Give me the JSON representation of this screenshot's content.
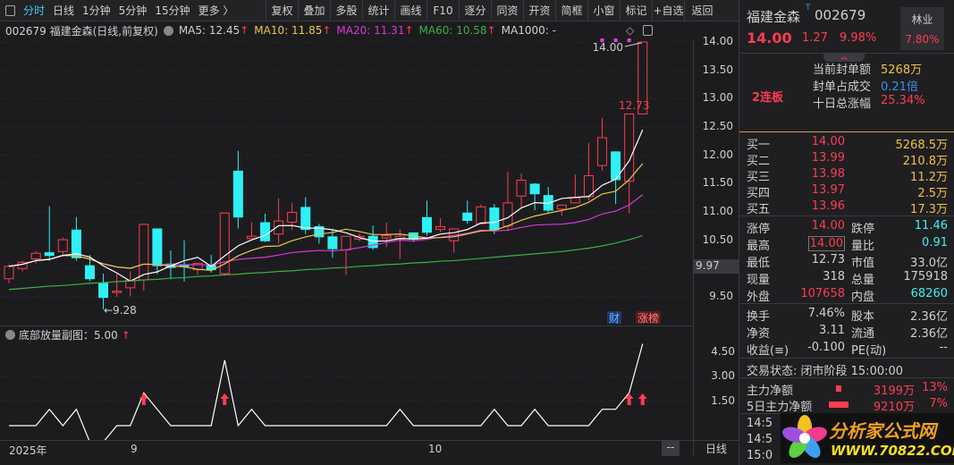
{
  "toolbar": {
    "period_tabs": [
      "分时",
      "日线",
      "1分钟",
      "5分钟",
      "15分钟",
      "更多 〉"
    ],
    "active_tab": "分时",
    "buttons": [
      "复权",
      "叠加",
      "多股",
      "统计",
      "画线",
      "F10",
      "逐分",
      "同资",
      "开资",
      "简框",
      "小窗",
      "标记",
      "+自选",
      "返回"
    ]
  },
  "info": {
    "title": "002679 福建金森(日线,前复权)",
    "ma5": "MA5: 12.45",
    "ma10": "MA10: 11.85",
    "ma20": "MA20: 11.31",
    "ma60": "MA60: 10.58",
    "ma1000": "MA1000: -",
    "arrow": "↑"
  },
  "colors": {
    "up": "#ff3c50",
    "down": "#2ef0f5",
    "ma5": "#ffffff",
    "ma10": "#e8c84a",
    "ma20": "#d838d8",
    "ma60": "#3cb043",
    "bg": "#1c1c1f"
  },
  "chart_data": {
    "type": "candlestick",
    "price_ticks": [
      "14.00",
      "13.50",
      "13.00",
      "12.50",
      "12.00",
      "11.50",
      "11.00",
      "10.50",
      "9.50"
    ],
    "prev_close_label": "9.97",
    "candles": [
      [
        9.82,
        10.04,
        10.07,
        9.74
      ],
      [
        10.0,
        10.11,
        10.14,
        9.95
      ],
      [
        10.17,
        10.27,
        10.31,
        10.09
      ],
      [
        10.28,
        10.23,
        11.1,
        10.14
      ],
      [
        10.3,
        10.51,
        10.55,
        10.21
      ],
      [
        10.68,
        10.19,
        10.91,
        10.14
      ],
      [
        10.05,
        9.82,
        10.24,
        9.78
      ],
      [
        9.74,
        9.49,
        9.91,
        9.28
      ],
      [
        9.58,
        9.6,
        9.9,
        9.5
      ],
      [
        9.66,
        9.79,
        9.95,
        9.51
      ],
      [
        9.8,
        10.78,
        10.78,
        9.61
      ],
      [
        10.7,
        10.05,
        10.7,
        9.9
      ],
      [
        10.08,
        10.02,
        10.32,
        9.81
      ],
      [
        10.06,
        10.05,
        10.5,
        9.77
      ],
      [
        9.98,
        10.09,
        10.1,
        9.89
      ],
      [
        10.06,
        9.98,
        10.24,
        9.93
      ],
      [
        9.91,
        10.98,
        10.98,
        9.87
      ],
      [
        11.72,
        10.91,
        12.08,
        10.71
      ],
      [
        10.53,
        10.57,
        10.82,
        10.53
      ],
      [
        10.81,
        10.49,
        10.97,
        10.47
      ],
      [
        10.61,
        10.84,
        11.24,
        10.44
      ],
      [
        10.82,
        10.99,
        11.16,
        10.68
      ],
      [
        11.08,
        10.69,
        11.26,
        10.61
      ],
      [
        10.74,
        10.56,
        10.79,
        10.44
      ],
      [
        10.56,
        10.35,
        10.69,
        10.19
      ],
      [
        10.33,
        10.57,
        10.57,
        9.89
      ],
      [
        10.52,
        10.57,
        10.62,
        10.48
      ],
      [
        10.57,
        10.37,
        10.76,
        10.33
      ],
      [
        10.54,
        10.58,
        10.81,
        10.38
      ],
      [
        10.52,
        10.57,
        10.69,
        10.17
      ],
      [
        10.63,
        10.52,
        10.63,
        10.47
      ],
      [
        10.9,
        10.64,
        11.2,
        10.58
      ],
      [
        10.69,
        10.74,
        10.89,
        10.64
      ],
      [
        10.49,
        10.7,
        10.7,
        10.28
      ],
      [
        10.98,
        10.85,
        11.2,
        10.79
      ],
      [
        10.79,
        11.09,
        11.13,
        10.79
      ],
      [
        11.07,
        10.69,
        11.14,
        10.61
      ],
      [
        10.75,
        11.16,
        11.71,
        10.66
      ],
      [
        11.28,
        11.56,
        11.68,
        11.06
      ],
      [
        11.49,
        11.32,
        11.51,
        11.03
      ],
      [
        11.29,
        11.03,
        11.44,
        10.98
      ],
      [
        11.05,
        11.12,
        11.12,
        10.93
      ],
      [
        11.16,
        11.25,
        11.66,
        11.16
      ],
      [
        11.27,
        11.64,
        12.22,
        11.2
      ],
      [
        11.82,
        12.31,
        12.66,
        11.73
      ],
      [
        12.06,
        11.57,
        12.07,
        11.14
      ],
      [
        11.54,
        12.73,
        12.73,
        10.98
      ],
      [
        12.73,
        14.0,
        14.0,
        12.73
      ]
    ],
    "ma60": [
      9.63,
      9.65,
      9.67,
      9.69,
      9.7,
      9.72,
      9.74,
      9.75,
      9.77,
      9.78,
      9.8,
      9.81,
      9.83,
      9.84,
      9.86,
      9.87,
      9.89,
      9.9,
      9.92,
      9.93,
      9.95,
      9.96,
      9.98,
      9.99,
      10.01,
      10.02,
      10.04,
      10.05,
      10.07,
      10.08,
      10.1,
      10.11,
      10.13,
      10.14,
      10.16,
      10.18,
      10.2,
      10.22,
      10.24,
      10.26,
      10.28,
      10.3,
      10.33,
      10.36,
      10.4,
      10.45,
      10.51,
      10.58
    ],
    "annotations": {
      "high": "14.00",
      "low": "←9.28",
      "last_low": "12.73"
    },
    "badges": {
      "cai": "财",
      "zhangbang": "涨榜"
    },
    "signal_dots_at": [
      44,
      45,
      46
    ],
    "sub": {
      "title": "底部放量副图：5.00",
      "arrow": "↑",
      "ticks": [
        "4.50",
        "3.00",
        "1.50"
      ],
      "values": [
        0,
        0,
        0,
        1,
        0,
        1,
        -1,
        -1,
        0,
        0,
        2,
        1,
        0,
        0,
        0,
        0,
        4,
        0,
        1,
        0,
        0,
        0,
        0,
        0,
        0,
        0,
        0,
        0,
        0,
        1,
        0,
        0,
        0,
        0,
        0,
        0,
        1,
        0,
        0,
        1,
        0,
        0,
        0,
        0,
        1,
        1,
        2,
        5
      ],
      "arrows_at": [
        10,
        16,
        46,
        47
      ]
    },
    "x_labels": {
      "year": "2025年",
      "sep": "9",
      "oct": "10"
    },
    "bottom": {
      "dash": "--",
      "period": "日线"
    }
  },
  "quote": {
    "name": "福建金森",
    "t": "T",
    "code": "002679",
    "price": "14.00",
    "change": "1.27",
    "pct": "9.98%",
    "sector": "林业",
    "sector_pct": "7.80%",
    "streak": "2连板",
    "seal": [
      [
        "当前封单额",
        "5268万"
      ],
      [
        "封单占成交",
        "0.21倍"
      ],
      [
        "十日总涨幅",
        "25.34%"
      ]
    ],
    "book": [
      [
        "买一",
        "14.00",
        "5268.5万"
      ],
      [
        "买二",
        "13.99",
        "210.8万"
      ],
      [
        "买三",
        "13.98",
        "11.2万"
      ],
      [
        "买四",
        "13.97",
        "2.5万"
      ],
      [
        "买五",
        "13.96",
        "17.3万"
      ]
    ],
    "stats": [
      [
        "涨停",
        "14.00",
        "跌停",
        "11.46"
      ],
      [
        "最高",
        "14.00",
        "量比",
        "0.91"
      ],
      [
        "最低",
        "12.73",
        "市值",
        "33.0亿"
      ],
      [
        "现量",
        "318",
        "总量",
        "175918"
      ],
      [
        "外盘",
        "107658",
        "内盘",
        "68260"
      ]
    ],
    "stats2": [
      [
        "换手",
        "7.46%",
        "股本",
        "2.36亿"
      ],
      [
        "净资",
        "3.11",
        "流通",
        "2.36亿"
      ],
      [
        "收益(≡)",
        "-0.100",
        "PE(动)",
        "--"
      ]
    ],
    "status": "交易状态: 闭市阶段 15:00:00",
    "flow": [
      [
        "主力净额",
        "3199万",
        "13%"
      ],
      [
        "5日主力净额",
        "9210万",
        "7%"
      ]
    ],
    "ticks": [
      "14:5",
      "14:5",
      "15:0"
    ],
    "logo": {
      "name": "分析家公式网",
      "url": "WWW.70822.COM"
    }
  }
}
